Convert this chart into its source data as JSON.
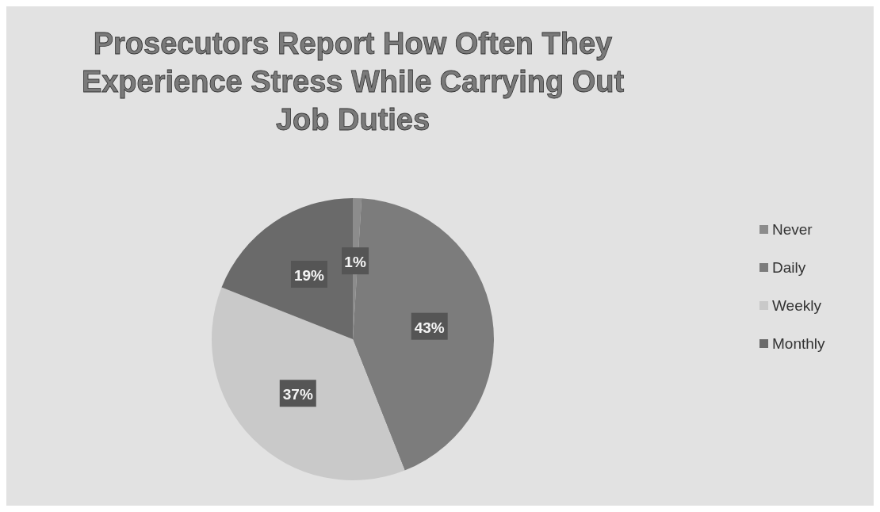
{
  "chart_data": {
    "type": "pie",
    "title": "Prosecutors Report How Often They Experience Stress While Carrying Out Job Duties",
    "categories": [
      "Never",
      "Daily",
      "Weekly",
      "Monthly"
    ],
    "values": [
      1,
      43,
      37,
      19
    ],
    "value_labels": [
      "1%",
      "43%",
      "37%",
      "19%"
    ],
    "colors": [
      "#8c8c8c",
      "#7c7c7c",
      "#c9c9c9",
      "#6a6a6a"
    ],
    "legend": "right"
  }
}
